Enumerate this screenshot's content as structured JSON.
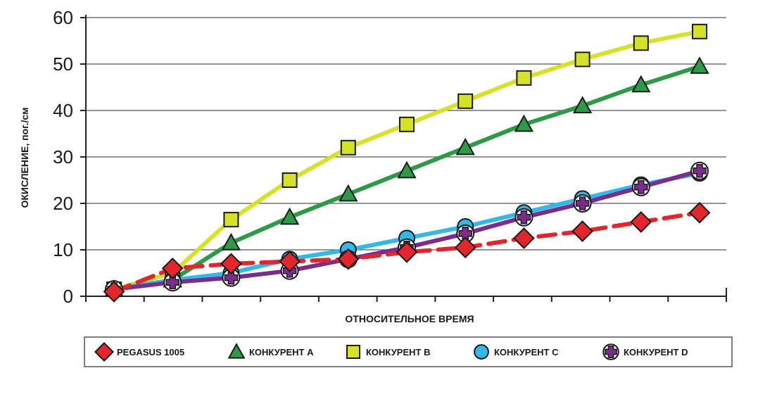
{
  "chart_data": {
    "type": "line",
    "xlabel": "ОТНОСИТЕЛЬНОЕ ВРЕМЯ",
    "ylabel": "ОКИСЛЕНИЕ, пог./см",
    "ylim": [
      0,
      60
    ],
    "yticks": [
      "0",
      "10",
      "20",
      "30",
      "40",
      "50",
      "60"
    ],
    "x": [
      1,
      2,
      3,
      4,
      5,
      6,
      7,
      8,
      9,
      10,
      11
    ],
    "grid": true,
    "legend_position": "bottom",
    "series": [
      {
        "name": "КОНКУРЕНТ B",
        "color": "#d6e227",
        "marker": "square",
        "values": [
          1.5,
          5,
          16.5,
          25,
          32,
          37,
          42,
          47,
          51,
          54.5,
          57
        ]
      },
      {
        "name": "КОНКУРЕНТ A",
        "color": "#2e9a47",
        "marker": "triangle",
        "values": [
          1.5,
          3.5,
          11.5,
          17,
          22,
          27,
          32,
          37,
          41,
          45.5,
          49.5
        ]
      },
      {
        "name": "КОНКУРЕНТ C",
        "color": "#33b8e8",
        "marker": "circle",
        "values": [
          1.5,
          3.5,
          5,
          8,
          10,
          12.5,
          15,
          18,
          21,
          24,
          26.5
        ]
      },
      {
        "name": "КОНКУРЕНТ D",
        "color": "#7a2d8c",
        "marker": "plus",
        "values": [
          1.5,
          3,
          4,
          5.5,
          8,
          10.5,
          13.5,
          17,
          20,
          23.5,
          27
        ]
      },
      {
        "name": "PEGASUS 1005",
        "color": "#e3262b",
        "marker": "diamond",
        "values": [
          1,
          6,
          7,
          7.5,
          8,
          9.5,
          10.5,
          12.5,
          14,
          16,
          18
        ]
      }
    ],
    "legend_order": [
      "PEGASUS 1005",
      "КОНКУРЕНТ A",
      "КОНКУРЕНТ B",
      "КОНКУРЕНТ C",
      "КОНКУРЕНТ D"
    ]
  }
}
